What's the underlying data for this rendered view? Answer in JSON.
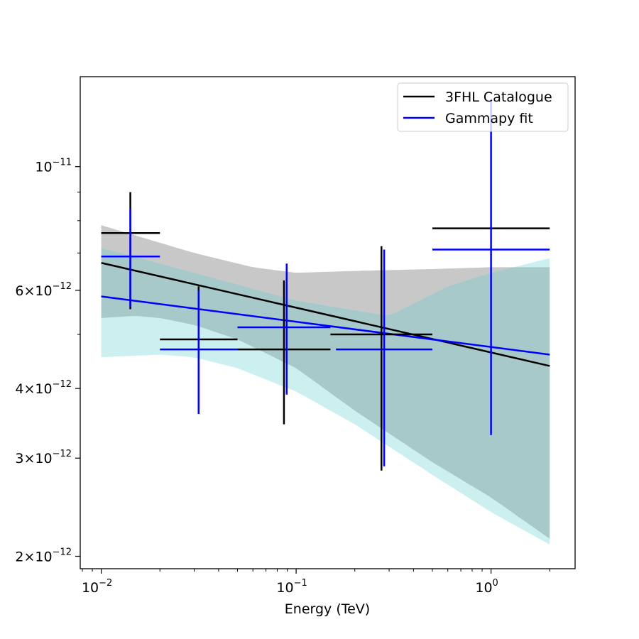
{
  "chart_data": {
    "type": "line",
    "xlabel": "Energy (TeV)",
    "ylabel": "",
    "xscale": "log",
    "yscale": "log",
    "xlim": [
      0.0078,
      2.7
    ],
    "ylim": [
      1.9e-12,
      1.45e-11
    ],
    "grid": false,
    "legend_position": "top-right",
    "colors": {
      "catalogue": "#000000",
      "fit": "#0000ff",
      "catalogue_band": "#c8c8c8",
      "fit_band": "#ccf0f0",
      "overlap_band": "#a7c9c9"
    },
    "x_ticks": [
      {
        "value": 0.01,
        "base": "10",
        "exp": "−2"
      },
      {
        "value": 0.1,
        "base": "10",
        "exp": "−1"
      },
      {
        "value": 1,
        "base": "10",
        "exp": "0"
      }
    ],
    "y_ticks": [
      {
        "value": 1e-11,
        "mant": "",
        "base": "10",
        "exp": "−11"
      },
      {
        "value": 6e-12,
        "mant": "6×",
        "base": "10",
        "exp": "−12"
      },
      {
        "value": 4e-12,
        "mant": "4×",
        "base": "10",
        "exp": "−12"
      },
      {
        "value": 3e-12,
        "mant": "3×",
        "base": "10",
        "exp": "−12"
      },
      {
        "value": 2e-12,
        "mant": "2×",
        "base": "10",
        "exp": "−12"
      }
    ],
    "series": [
      {
        "name": "3FHL Catalogue",
        "color": "#000000",
        "model_line": {
          "x": [
            0.01,
            2.0
          ],
          "y": [
            6.72e-12,
            4.39e-12
          ]
        },
        "band": {
          "color": "#c8c8c8",
          "upper": [
            [
              0.01,
              7.85e-12
            ],
            [
              0.03,
              7e-12
            ],
            [
              0.06,
              6.6e-12
            ],
            [
              0.1,
              6.45e-12
            ],
            [
              0.2,
              6.5e-12
            ],
            [
              0.5,
              6.55e-12
            ],
            [
              1.0,
              6.6e-12
            ],
            [
              2.0,
              6.6e-12
            ]
          ],
          "lower": [
            [
              0.01,
              5.35e-12
            ],
            [
              0.015,
              5.4e-12
            ],
            [
              0.02,
              5.35e-12
            ],
            [
              0.03,
              5.2e-12
            ],
            [
              0.05,
              4.9e-12
            ],
            [
              0.1,
              4.35e-12
            ],
            [
              0.2,
              3.65e-12
            ],
            [
              0.5,
              2.95e-12
            ],
            [
              1.0,
              2.55e-12
            ],
            [
              2.0,
              2.15e-12
            ]
          ]
        },
        "points": [
          {
            "x": 0.0141,
            "xlo": 0.01,
            "xhi": 0.02,
            "y": 7.6e-12,
            "ylo": 5.55e-12,
            "yhi": 9e-12
          },
          {
            "x": 0.0316,
            "xlo": 0.02,
            "xhi": 0.05,
            "y": 4.9e-12,
            "ylo": 3.65e-12,
            "yhi": 6.1e-12
          },
          {
            "x": 0.0866,
            "xlo": 0.05,
            "xhi": 0.15,
            "y": 4.7e-12,
            "ylo": 3.45e-12,
            "yhi": 6.25e-12
          },
          {
            "x": 0.274,
            "xlo": 0.15,
            "xhi": 0.5,
            "y": 5e-12,
            "ylo": 2.85e-12,
            "yhi": 7.2e-12
          },
          {
            "x": 1.0,
            "xlo": 0.5,
            "xhi": 2.0,
            "y": 7.75e-12,
            "ylo": null,
            "yhi": null
          }
        ]
      },
      {
        "name": "Gammapy fit",
        "color": "#0000ff",
        "model_line": {
          "x": [
            0.01,
            2.0
          ],
          "y": [
            5.85e-12,
            4.6e-12
          ]
        },
        "band": {
          "color": "#ccf0f0",
          "upper": [
            [
              0.01,
              7.15e-12
            ],
            [
              0.05,
              6.15e-12
            ],
            [
              0.1,
              5.75e-12
            ],
            [
              0.3,
              5.4e-12
            ],
            [
              0.6,
              6.1e-12
            ],
            [
              1.0,
              6.45e-12
            ],
            [
              2.0,
              6.85e-12
            ]
          ],
          "lower": [
            [
              0.01,
              4.55e-12
            ],
            [
              0.02,
              4.6e-12
            ],
            [
              0.03,
              4.55e-12
            ],
            [
              0.05,
              4.35e-12
            ],
            [
              0.1,
              3.95e-12
            ],
            [
              0.2,
              3.45e-12
            ],
            [
              0.5,
              2.8e-12
            ],
            [
              1.0,
              2.4e-12
            ],
            [
              2.0,
              2.1e-12
            ]
          ]
        },
        "points": [
          {
            "x": 0.0141,
            "xlo": 0.01,
            "xhi": 0.02,
            "y": 6.9e-12,
            "ylo": 5.6e-12,
            "yhi": 8.4e-12
          },
          {
            "x": 0.0316,
            "xlo": 0.02,
            "xhi": 0.05,
            "y": 4.7e-12,
            "ylo": 3.6e-12,
            "yhi": 6e-12
          },
          {
            "x": 0.0894,
            "xlo": 0.05,
            "xhi": 0.15,
            "y": 5.15e-12,
            "ylo": 3.9e-12,
            "yhi": 6.7e-12
          },
          {
            "x": 0.283,
            "xlo": 0.16,
            "xhi": 0.5,
            "y": 4.7e-12,
            "ylo": 2.9e-12,
            "yhi": 7.1e-12
          },
          {
            "x": 1.0,
            "xlo": 0.5,
            "xhi": 2.0,
            "y": 7.1e-12,
            "ylo": 3.3e-12,
            "yhi": 1.32e-11
          }
        ]
      }
    ]
  }
}
